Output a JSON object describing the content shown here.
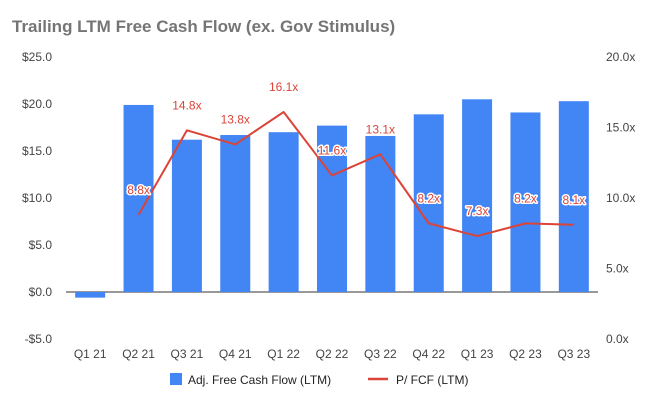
{
  "chart_data": {
    "type": "bar+line",
    "title": "Trailing LTM Free Cash Flow (ex. Gov Stimulus)",
    "categories": [
      "Q1 21",
      "Q2 21",
      "Q3 21",
      "Q4 21",
      "Q1 22",
      "Q2 22",
      "Q3 22",
      "Q4 22",
      "Q1 23",
      "Q2 23",
      "Q3 23"
    ],
    "series": [
      {
        "name": "Adj. Free Cash Flow (LTM)",
        "type": "bar",
        "axis": "left",
        "color": "#4285f4",
        "values": [
          -0.6,
          19.9,
          16.2,
          16.7,
          17.0,
          17.7,
          16.6,
          18.9,
          20.5,
          19.1,
          20.3
        ]
      },
      {
        "name": "P/ FCF (LTM)",
        "type": "line",
        "axis": "right",
        "color": "#db4437",
        "values": [
          null,
          8.8,
          14.8,
          13.8,
          16.1,
          11.6,
          13.1,
          8.2,
          7.3,
          8.2,
          8.1
        ],
        "labels": [
          "",
          "8.8x",
          "14.8x",
          "13.8x",
          "16.1x",
          "11.6x",
          "13.1x",
          "8.2x",
          "7.3x",
          "8.2x",
          "8.1x"
        ]
      }
    ],
    "y_left": {
      "min": -5,
      "max": 25,
      "ticks": [
        -5,
        0,
        5,
        10,
        15,
        20,
        25
      ],
      "tick_labels": [
        "-$5.0",
        "$0.0",
        "$5.0",
        "$10.0",
        "$15.0",
        "$20.0",
        "$25.0"
      ]
    },
    "y_right": {
      "min": 0,
      "max": 20,
      "ticks": [
        0,
        5,
        10,
        15,
        20
      ],
      "tick_labels": [
        "0.0x",
        "5.0x",
        "10.0x",
        "15.0x",
        "20.0x"
      ]
    },
    "grid": false,
    "legend": "bottom"
  }
}
